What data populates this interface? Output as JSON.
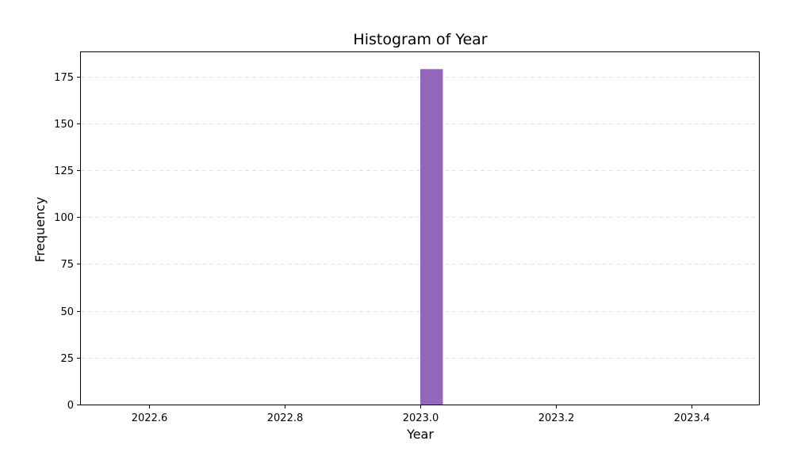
{
  "chart_data": {
    "type": "bar",
    "title": "Histogram of Year",
    "xlabel": "Year",
    "ylabel": "Frequency",
    "xlim": [
      2022.5,
      2023.5
    ],
    "ylim": [
      0,
      188
    ],
    "x_ticks": [
      "2022.6",
      "2022.8",
      "2023.0",
      "2023.2",
      "2023.4"
    ],
    "x_tick_values": [
      2022.6,
      2022.8,
      2023.0,
      2023.2,
      2023.4
    ],
    "y_ticks": [
      "0",
      "25",
      "50",
      "75",
      "100",
      "125",
      "150",
      "175"
    ],
    "y_tick_values": [
      0,
      25,
      50,
      75,
      100,
      125,
      150,
      175
    ],
    "bins": [
      {
        "start": 2022.9667,
        "end": 2023.0,
        "value": 0
      },
      {
        "start": 2023.0,
        "end": 2023.0333,
        "value": 179
      }
    ],
    "grid": "y-dashed",
    "bar_color": "#9467bd"
  }
}
